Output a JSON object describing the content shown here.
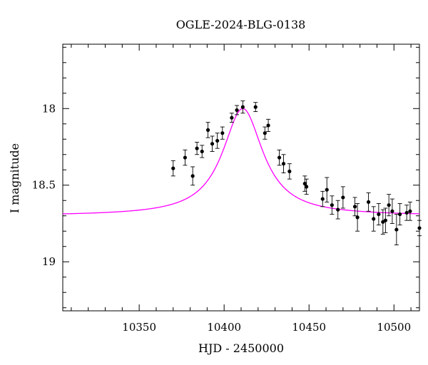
{
  "chart_data": {
    "type": "scatter",
    "title": "OGLE-2024-BLG-0138",
    "xlabel": "HJD - 2450000",
    "ylabel": "I magnitude",
    "xlim": [
      10305,
      10515
    ],
    "ylim": [
      18.0,
      20.0
    ],
    "x_ticks": [
      10350,
      10400,
      10450,
      10500
    ],
    "y_ticks": [
      18,
      18.5,
      19
    ],
    "y_inverted": true,
    "grid": false,
    "legend": "none",
    "colors": {
      "points": "#000000",
      "model": "#ff00ff",
      "frame": "#000000"
    },
    "series": [
      {
        "type": "scatter_errorbar",
        "points": [
          [
            10370.0,
            18.39,
            0.05
          ],
          [
            10377.0,
            18.32,
            0.05
          ],
          [
            10381.5,
            18.44,
            0.06
          ],
          [
            10384.0,
            18.26,
            0.04
          ],
          [
            10387.0,
            18.28,
            0.04
          ],
          [
            10390.5,
            18.14,
            0.05
          ],
          [
            10393.0,
            18.23,
            0.05
          ],
          [
            10396.0,
            18.21,
            0.05
          ],
          [
            10399.0,
            18.16,
            0.04
          ],
          [
            10404.5,
            18.06,
            0.03
          ],
          [
            10407.5,
            18.01,
            0.03
          ],
          [
            10411.0,
            17.99,
            0.04
          ],
          [
            10418.5,
            17.99,
            0.03
          ],
          [
            10424.0,
            18.16,
            0.04
          ],
          [
            10426.0,
            18.11,
            0.04
          ],
          [
            10432.5,
            18.32,
            0.05
          ],
          [
            10435.0,
            18.36,
            0.06
          ],
          [
            10438.5,
            18.41,
            0.05
          ],
          [
            10447.5,
            18.49,
            0.05
          ],
          [
            10448.5,
            18.51,
            0.05
          ],
          [
            10458.0,
            18.59,
            0.05
          ],
          [
            10460.5,
            18.53,
            0.08
          ],
          [
            10463.5,
            18.63,
            0.06
          ],
          [
            10467.0,
            18.66,
            0.06
          ],
          [
            10470.0,
            18.58,
            0.07
          ],
          [
            10477.0,
            18.64,
            0.06
          ],
          [
            10478.5,
            18.71,
            0.09
          ],
          [
            10485.0,
            18.61,
            0.06
          ],
          [
            10488.0,
            18.72,
            0.08
          ],
          [
            10491.0,
            18.69,
            0.07
          ],
          [
            10493.5,
            18.74,
            0.08
          ],
          [
            10495.0,
            18.73,
            0.08
          ],
          [
            10497.0,
            18.63,
            0.07
          ],
          [
            10499.0,
            18.67,
            0.08
          ],
          [
            10501.5,
            18.79,
            0.1
          ],
          [
            10503.5,
            18.69,
            0.07
          ],
          [
            10507.5,
            18.68,
            0.05
          ],
          [
            10509.5,
            18.67,
            0.06
          ],
          [
            10515.0,
            18.78,
            0.05
          ]
        ]
      },
      {
        "type": "model_curve",
        "model": {
          "t0": 10411,
          "baseline": 18.7,
          "peak": 18.0,
          "width": 14.5
        }
      }
    ]
  }
}
